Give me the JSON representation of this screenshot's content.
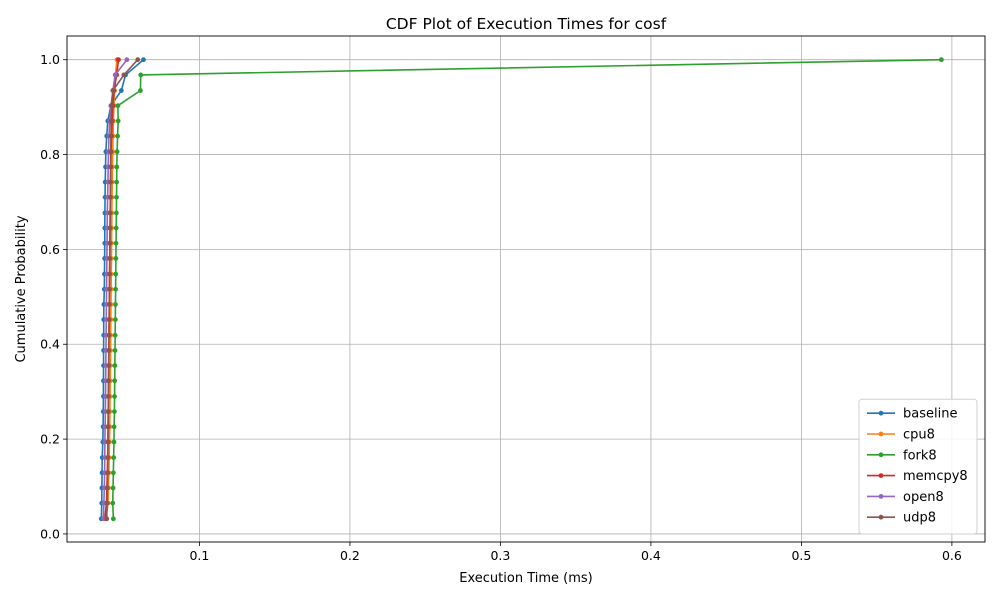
{
  "chart_data": {
    "type": "line",
    "title": "CDF Plot of Execution Times for cosf",
    "xlabel": "Execution Time (ms)",
    "ylabel": "Cumulative Probability",
    "xlim": [
      0.012,
      0.622
    ],
    "ylim": [
      -0.017,
      1.05
    ],
    "xticks": [
      0.1,
      0.2,
      0.3,
      0.4,
      0.5,
      0.6
    ],
    "xtick_labels": [
      "0.1",
      "0.2",
      "0.3",
      "0.4",
      "0.5",
      "0.6"
    ],
    "yticks": [
      0.0,
      0.2,
      0.4,
      0.6,
      0.8,
      1.0
    ],
    "ytick_labels": [
      "0.0",
      "0.2",
      "0.4",
      "0.6",
      "0.8",
      "1.0"
    ],
    "grid": true,
    "legend_position": "lower right",
    "y": [
      0.032,
      0.065,
      0.097,
      0.129,
      0.161,
      0.194,
      0.226,
      0.258,
      0.29,
      0.323,
      0.355,
      0.387,
      0.419,
      0.452,
      0.484,
      0.516,
      0.548,
      0.581,
      0.613,
      0.645,
      0.677,
      0.71,
      0.742,
      0.774,
      0.806,
      0.839,
      0.871,
      0.903,
      0.935,
      0.968,
      1.0
    ],
    "series": [
      {
        "name": "baseline",
        "color": "#1f77b4",
        "x": [
          0.0348,
          0.0351,
          0.0352,
          0.0353,
          0.0354,
          0.0358,
          0.036,
          0.0361,
          0.0362,
          0.0362,
          0.0363,
          0.0363,
          0.0364,
          0.0364,
          0.0365,
          0.0368,
          0.0369,
          0.037,
          0.0371,
          0.0371,
          0.0372,
          0.0373,
          0.0374,
          0.0376,
          0.0378,
          0.0384,
          0.0391,
          0.0412,
          0.0481,
          0.0509,
          0.0628
        ]
      },
      {
        "name": "cpu8",
        "color": "#ff7f0e",
        "x": [
          0.0378,
          0.0393,
          0.0395,
          0.0398,
          0.04,
          0.0402,
          0.0404,
          0.0405,
          0.0406,
          0.0407,
          0.0408,
          0.0409,
          0.041,
          0.0411,
          0.0412,
          0.0413,
          0.0414,
          0.0415,
          0.0416,
          0.0417,
          0.0418,
          0.0419,
          0.0421,
          0.0422,
          0.0424,
          0.0426,
          0.0428,
          0.0432,
          0.0436,
          0.0442,
          0.0452
        ]
      },
      {
        "name": "fork8",
        "color": "#2ca02c",
        "x": [
          0.0428,
          0.0424,
          0.0426,
          0.0428,
          0.043,
          0.0432,
          0.0433,
          0.0435,
          0.0436,
          0.0437,
          0.0438,
          0.0439,
          0.044,
          0.0441,
          0.0442,
          0.0443,
          0.0444,
          0.0445,
          0.0446,
          0.0447,
          0.0448,
          0.0449,
          0.045,
          0.0451,
          0.0453,
          0.0456,
          0.046,
          0.0458,
          0.0608,
          0.061,
          0.593
        ]
      },
      {
        "name": "memcpy8",
        "color": "#d62728",
        "x": [
          0.0372,
          0.0382,
          0.0385,
          0.0388,
          0.039,
          0.0392,
          0.0393,
          0.0394,
          0.0395,
          0.0396,
          0.0397,
          0.0398,
          0.0399,
          0.04,
          0.0401,
          0.0402,
          0.0403,
          0.0404,
          0.0405,
          0.0406,
          0.0407,
          0.0408,
          0.0409,
          0.0411,
          0.0413,
          0.0416,
          0.042,
          0.0425,
          0.0432,
          0.045,
          0.0462
        ]
      },
      {
        "name": "open8",
        "color": "#9467bd",
        "x": [
          0.0362,
          0.0365,
          0.0368,
          0.037,
          0.0371,
          0.0372,
          0.0373,
          0.0375,
          0.0376,
          0.0377,
          0.0378,
          0.0379,
          0.038,
          0.0381,
          0.0382,
          0.0383,
          0.0384,
          0.0385,
          0.0386,
          0.0387,
          0.0388,
          0.039,
          0.0392,
          0.0394,
          0.0396,
          0.0399,
          0.0404,
          0.0412,
          0.0425,
          0.044,
          0.0518
        ]
      },
      {
        "name": "udp8",
        "color": "#8c564b",
        "x": [
          0.0384,
          0.0386,
          0.0388,
          0.039,
          0.0391,
          0.0392,
          0.0393,
          0.0394,
          0.0395,
          0.0396,
          0.0397,
          0.0398,
          0.0399,
          0.04,
          0.0401,
          0.0402,
          0.0403,
          0.0404,
          0.0405,
          0.0406,
          0.0407,
          0.0408,
          0.0409,
          0.041,
          0.0411,
          0.0412,
          0.0414,
          0.0418,
          0.0425,
          0.0498,
          0.059
        ]
      }
    ]
  }
}
